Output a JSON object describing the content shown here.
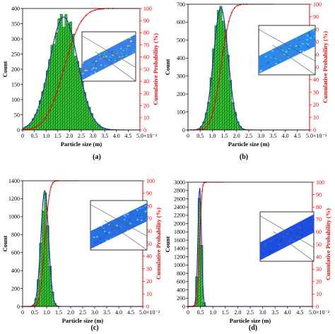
{
  "chart_data": [
    {
      "panel_label": "(a)",
      "type": "bar",
      "xlabel": "Particle size (m)",
      "ylabel": "Count",
      "y2label": "Cumulative Probability (%)",
      "x_exponent": "×10⁻²",
      "xlim": [
        0,
        5.0
      ],
      "ylim": [
        0,
        400
      ],
      "y2lim": [
        0,
        100
      ],
      "xticks": [
        "0",
        "0.5",
        "1.0",
        "1.5",
        "2.0",
        "2.5",
        "3.0",
        "3.5",
        "4.0",
        "4.5",
        "5.0"
      ],
      "yticks": [
        "0",
        "50",
        "100",
        "150",
        "200",
        "250",
        "300",
        "350",
        "400"
      ],
      "y2ticks": [
        "0",
        "10",
        "20",
        "30",
        "40",
        "50",
        "60",
        "70",
        "80",
        "90",
        "100"
      ],
      "fit": {
        "mean": 1.75,
        "peak": 372,
        "sigma": 0.6
      },
      "colors": {
        "bars": "#33cc33",
        "fit": "#1f1fcf",
        "cumulative": "#ff0000",
        "inset": "#3a7ee8"
      }
    },
    {
      "panel_label": "(b)",
      "type": "bar",
      "xlabel": "Particle size (m)",
      "ylabel": "Count",
      "y2label": "Cumulative Probability (%)",
      "x_exponent": "×10⁻²",
      "xlim": [
        0,
        5.0
      ],
      "ylim": [
        0,
        700
      ],
      "y2lim": [
        0,
        100
      ],
      "xticks": [
        "0",
        "0.5",
        "1.0",
        "1.5",
        "2.0",
        "2.5",
        "3.0",
        "3.5",
        "4.0",
        "4.5",
        "5.0"
      ],
      "yticks": [
        "0",
        "100",
        "200",
        "300",
        "400",
        "500",
        "600",
        "700"
      ],
      "y2ticks": [
        "0",
        "10",
        "20",
        "30",
        "40",
        "50",
        "60",
        "70",
        "80",
        "90",
        "100"
      ],
      "fit": {
        "mean": 1.35,
        "peak": 680,
        "sigma": 0.3
      },
      "colors": {
        "bars": "#33cc33",
        "fit": "#1f1fcf",
        "cumulative": "#ff0000",
        "inset": "#2e88e8"
      }
    },
    {
      "panel_label": "(c)",
      "type": "bar",
      "xlabel": "Particle size (m)",
      "ylabel": "Count",
      "y2label": "Cumulative Probability (%)",
      "x_exponent": "×10⁻²",
      "xlim": [
        0,
        5.0
      ],
      "ylim": [
        0,
        1400
      ],
      "y2lim": [
        0,
        100
      ],
      "xticks": [
        "0",
        "0.5",
        "1.0",
        "1.5",
        "2.0",
        "2.5",
        "3.0",
        "3.5",
        "4.0",
        "4.5",
        "5.0"
      ],
      "yticks": [
        "0",
        "200",
        "400",
        "600",
        "800",
        "1000",
        "1200",
        "1400"
      ],
      "y2ticks": [
        "0",
        "10",
        "20",
        "30",
        "40",
        "50",
        "60",
        "70",
        "80",
        "90",
        "100"
      ],
      "fit": {
        "mean": 0.92,
        "peak": 1290,
        "sigma": 0.16
      },
      "colors": {
        "bars": "#33cc33",
        "fit": "#1f1fcf",
        "cumulative": "#ff0000",
        "inset": "#2a6fe0"
      }
    },
    {
      "panel_label": "(d)",
      "type": "bar",
      "xlabel": "Particle size (m)",
      "ylabel": "Count",
      "y2label": "Cumulative Probability (%)",
      "x_exponent": "×10⁻²",
      "xlim": [
        0,
        5.0
      ],
      "ylim": [
        0,
        3000
      ],
      "y2lim": [
        0,
        100
      ],
      "xticks": [
        "0",
        "0.5",
        "1.0",
        "1.5",
        "2.0",
        "2.5",
        "3.0",
        "3.5",
        "4.0",
        "4.5",
        "5.0"
      ],
      "yticks": [
        "0",
        "200",
        "400",
        "600",
        "800",
        "1000",
        "1200",
        "1400",
        "1600",
        "1800",
        "2000",
        "2200",
        "2400",
        "2600",
        "2800",
        "3000"
      ],
      "y2ticks": [
        "0",
        "10",
        "20",
        "30",
        "40",
        "50",
        "60",
        "70",
        "80",
        "90",
        "100"
      ],
      "fit": {
        "mean": 0.47,
        "peak": 2870,
        "sigma": 0.07
      },
      "colors": {
        "bars": "#33cc33",
        "fit": "#1f1fcf",
        "cumulative": "#ff0000",
        "inset": "#1f4fe0"
      }
    }
  ]
}
